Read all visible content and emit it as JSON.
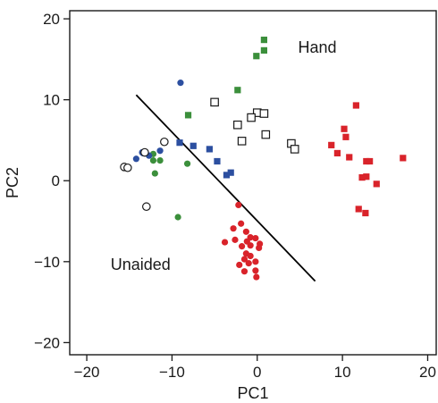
{
  "chart_data": {
    "type": "scatter",
    "title": "",
    "xlabel": "PC1",
    "ylabel": "PC2",
    "xlim": [
      -22,
      21
    ],
    "ylim": [
      -21.5,
      21
    ],
    "xticks": [
      -20,
      -10,
      0,
      10,
      20
    ],
    "yticks": [
      -20,
      -10,
      0,
      10,
      20
    ],
    "xtick_labels": [
      "−20",
      "−10",
      "0",
      "10",
      "20"
    ],
    "ytick_labels": [
      "−20",
      "−10",
      "0",
      "10",
      "20"
    ],
    "grid": false,
    "legend": "none",
    "annotations": [
      {
        "text": "Hand",
        "x": 4.8,
        "y": 15.8
      },
      {
        "text": "Unaided",
        "x": -17.2,
        "y": -11
      }
    ],
    "divider_line": {
      "x1": -14.2,
      "y1": 10.6,
      "x2": 6.8,
      "y2": -12.4,
      "color": "#000000"
    },
    "series": [
      {
        "color": "#d9232a",
        "marker": "square",
        "x": [
          11.6,
          10.2,
          10.4,
          8.7,
          12.8,
          9.4,
          10.8,
          13.2,
          12.3,
          12.8,
          14.0,
          17.1,
          11.9,
          12.7
        ],
        "y": [
          9.3,
          6.4,
          5.4,
          4.4,
          2.4,
          3.4,
          2.9,
          2.4,
          0.4,
          0.5,
          -0.4,
          2.8,
          -3.5,
          -4.0
        ]
      },
      {
        "color": "#d9232a",
        "marker": "circle",
        "x": [
          -2.2,
          -1.9,
          -1.3,
          -2.8,
          -0.8,
          -1.2,
          -0.2,
          0.3,
          -2.6,
          -1.8,
          -0.8,
          0.2,
          -1.3,
          -0.8,
          -1.5,
          -0.2,
          -2.1,
          -1.0,
          -3.8,
          -0.2,
          -1.5,
          -0.1
        ],
        "y": [
          -3.0,
          -5.3,
          -6.3,
          -5.9,
          -7.0,
          -7.5,
          -7.1,
          -7.8,
          -7.3,
          -8.1,
          -8.0,
          -8.3,
          -9.0,
          -9.3,
          -9.7,
          -10.0,
          -10.4,
          -10.2,
          -7.6,
          -11.1,
          -11.2,
          -11.9
        ]
      },
      {
        "color": "#3b8f3b",
        "marker": "square",
        "x": [
          0.8,
          0.8,
          -0.1,
          -2.3,
          -8.1
        ],
        "y": [
          17.4,
          16.1,
          15.4,
          11.2,
          8.1
        ]
      },
      {
        "color": "#3b8f3b",
        "marker": "circle",
        "x": [
          -12.2,
          -11.4,
          -12.2,
          -12.0,
          -8.2,
          -9.3
        ],
        "y": [
          3.3,
          2.5,
          2.5,
          0.9,
          2.1,
          -4.5
        ]
      },
      {
        "color": "#2c4fa0",
        "marker": "square",
        "x": [
          -9.1,
          -7.5,
          -5.6,
          -4.7,
          -3.6,
          -3.1
        ],
        "y": [
          4.7,
          4.3,
          3.9,
          2.4,
          0.7,
          1.0
        ]
      },
      {
        "color": "#2c4fa0",
        "marker": "circle",
        "x": [
          -9.0,
          -13.5,
          -11.4,
          -12.7,
          -14.2,
          -13.4
        ],
        "y": [
          12.1,
          3.5,
          3.7,
          3.1,
          2.7,
          3.4
        ]
      },
      {
        "color": "#1a1a1a",
        "marker": "square-open",
        "x": [
          -5.0,
          0.0,
          0.8,
          -0.7,
          -2.3,
          1.0,
          -1.8,
          4.0,
          4.4
        ],
        "y": [
          9.7,
          8.4,
          8.3,
          7.8,
          6.9,
          5.7,
          4.9,
          4.6,
          3.9
        ]
      },
      {
        "color": "#1a1a1a",
        "marker": "circle-open",
        "x": [
          -10.9,
          -13.2,
          -15.6,
          -15.2,
          -13.0
        ],
        "y": [
          4.8,
          3.5,
          1.7,
          1.6,
          -3.2
        ]
      }
    ]
  }
}
